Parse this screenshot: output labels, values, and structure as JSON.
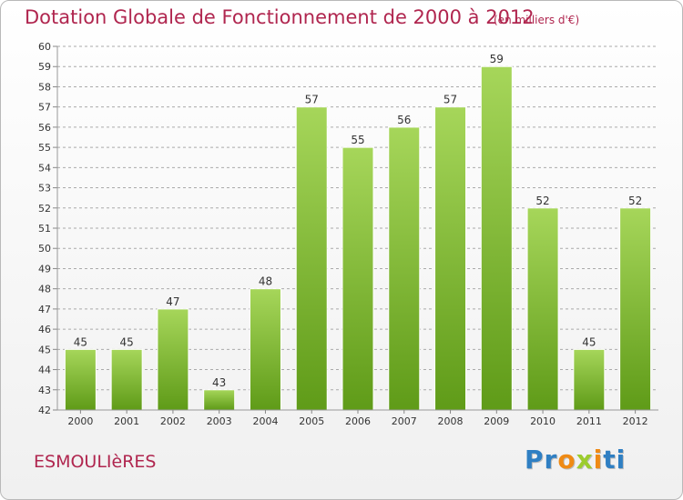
{
  "title": "Dotation Globale de Fonctionnement de 2000 à 2012",
  "unit_note": "(en milliers d'€)",
  "commune": "ESMOULIèRES",
  "logo": "Proxiti",
  "colors": {
    "title": "#b0264f",
    "bar_top": "#a6d65a",
    "bar_bottom": "#5f9b18",
    "grid": "#aaaaaa"
  },
  "chart_data": {
    "type": "bar",
    "categories": [
      "2000",
      "2001",
      "2002",
      "2003",
      "2004",
      "2005",
      "2006",
      "2007",
      "2008",
      "2009",
      "2010",
      "2011",
      "2012"
    ],
    "values": [
      45,
      45,
      47,
      43,
      48,
      57,
      55,
      56,
      57,
      59,
      52,
      45,
      52
    ],
    "ylim": [
      42,
      60
    ],
    "yticks": [
      42,
      43,
      44,
      45,
      46,
      47,
      48,
      49,
      50,
      51,
      52,
      53,
      54,
      55,
      56,
      57,
      58,
      59,
      60
    ],
    "grid": true,
    "grid_style": "dashed",
    "data_labels": true
  }
}
